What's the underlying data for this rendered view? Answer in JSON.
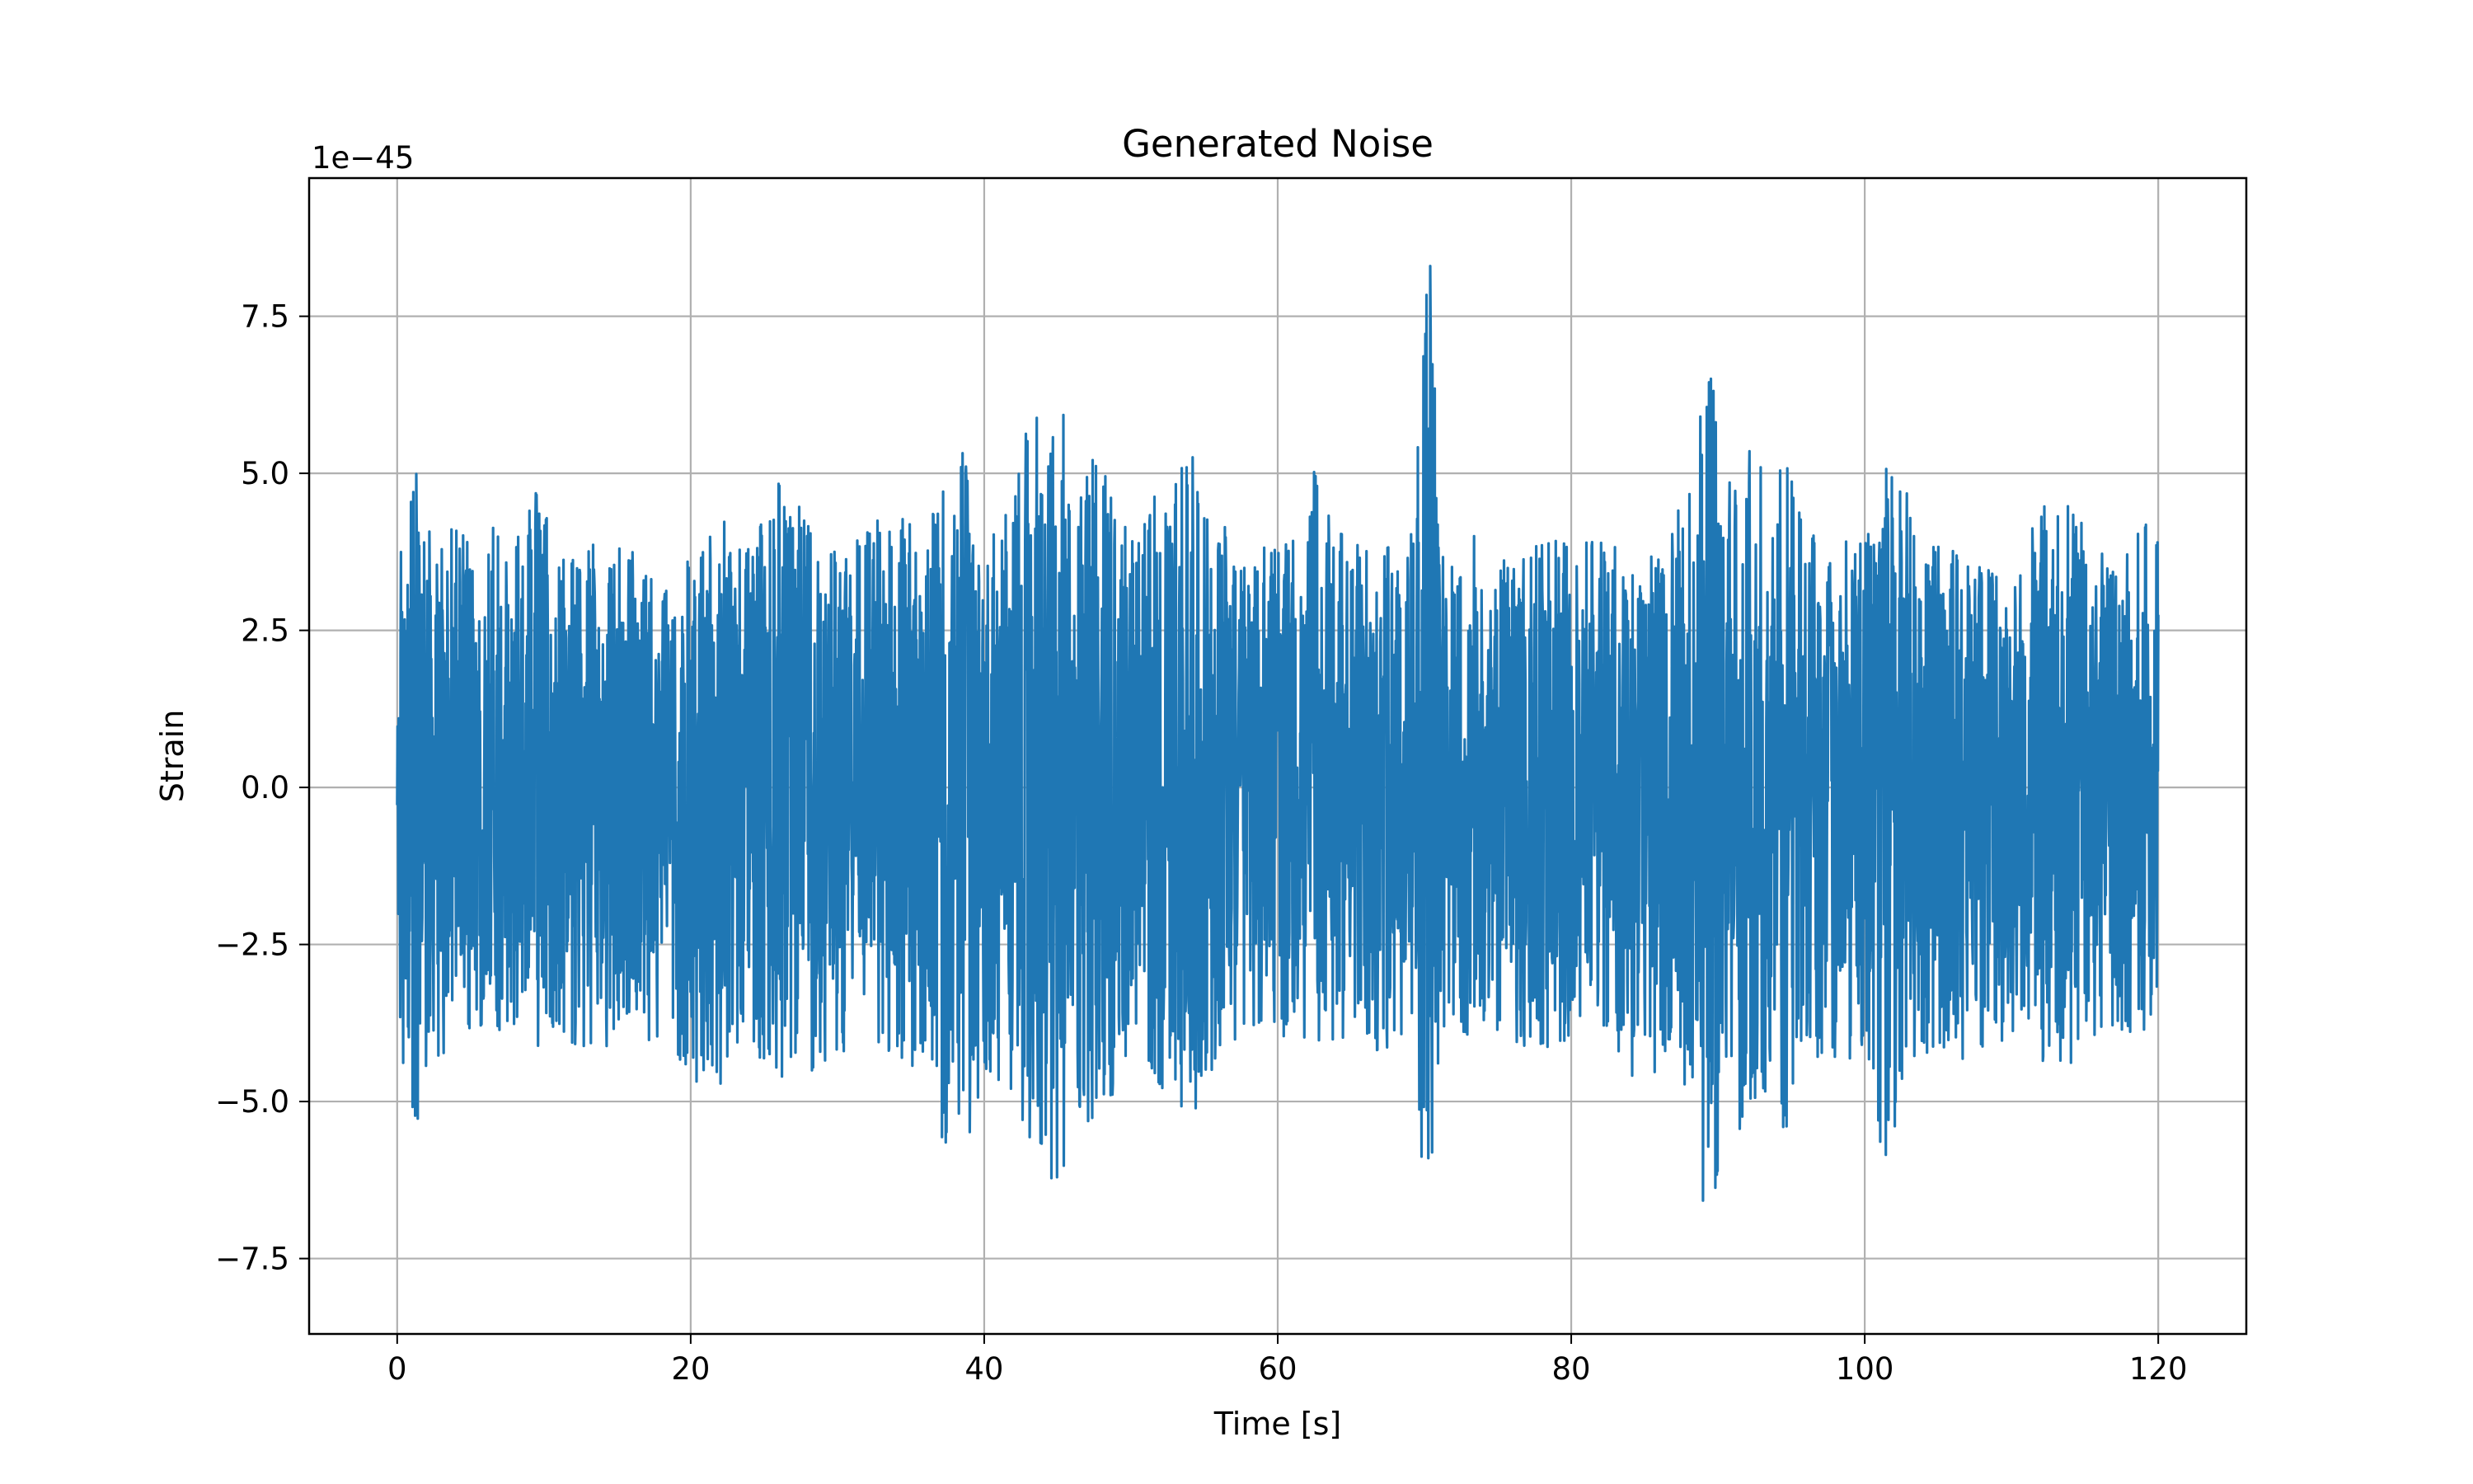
{
  "chart_data": {
    "type": "line",
    "title": "Generated Noise",
    "xlabel": "Time [s]",
    "ylabel": "Strain",
    "y_offset_text": "1e−45",
    "xlim": [
      -6,
      126
    ],
    "ylim": [
      -8.7,
      9.7
    ],
    "x_ticks": [
      0,
      20,
      40,
      60,
      80,
      100,
      120
    ],
    "x_tick_labels": [
      "0",
      "20",
      "40",
      "60",
      "80",
      "100",
      "120"
    ],
    "y_ticks": [
      -7.5,
      -5.0,
      -2.5,
      0.0,
      2.5,
      5.0,
      7.5
    ],
    "y_tick_labels": [
      "−7.5",
      "−5.0",
      "−2.5",
      "0.0",
      "2.5",
      "5.0",
      "7.5"
    ],
    "grid": true,
    "line_color": "#1f77b4",
    "series": [
      {
        "x_range": [
          0,
          120
        ],
        "envelope": {
          "x": [
            0,
            0.3,
            1.2,
            2,
            4,
            6,
            8,
            9.8,
            11,
            14,
            16,
            19,
            22,
            24,
            26,
            28,
            30,
            33,
            36,
            38.2,
            40,
            42,
            42.7,
            44,
            45.3,
            46,
            48,
            49.3,
            50,
            52,
            53,
            54,
            56,
            58,
            60,
            62,
            62.7,
            64,
            66,
            68,
            69.3,
            70.4,
            71,
            72,
            74,
            76,
            78,
            80,
            82,
            84,
            86,
            88.3,
            89.1,
            89.7,
            90.6,
            92,
            94,
            94.2,
            96,
            98,
            99.6,
            101,
            101.5,
            104,
            106,
            108,
            110,
            112,
            113.6,
            115,
            117,
            118.5,
            120
          ],
          "upper": [
            1.0,
            4.9,
            5.2,
            4.2,
            4.1,
            4.4,
            4.3,
            4.9,
            3.7,
            4.0,
            3.8,
            3.5,
            4.3,
            3.9,
            5.0,
            4.3,
            3.8,
            4.4,
            4.3,
            5.8,
            3.8,
            4.7,
            6.6,
            5.6,
            6.4,
            4.9,
            5.4,
            4.1,
            4.5,
            4.7,
            5.6,
            5.5,
            4.3,
            4.0,
            3.9,
            4.0,
            5.5,
            4.1,
            3.8,
            4.2,
            4.5,
            8.9,
            3.9,
            3.8,
            4.2,
            3.5,
            4.0,
            3.9,
            4.1,
            3.6,
            3.8,
            5.3,
            6.5,
            7.1,
            4.8,
            5.6,
            4.8,
            5.6,
            4.1,
            4.3,
            4.2,
            4.0,
            5.3,
            4.2,
            3.8,
            3.5,
            3.7,
            4.4,
            5.0,
            4.2,
            3.6,
            4.0,
            4.6
          ],
          "lower": [
            -1.0,
            -5.2,
            -5.9,
            -4.5,
            -4.2,
            -3.9,
            -4.1,
            -4.5,
            -4.0,
            -4.3,
            -4.0,
            -4.5,
            -4.9,
            -4.1,
            -5.0,
            -4.6,
            -4.2,
            -4.3,
            -4.5,
            -6.6,
            -4.5,
            -4.9,
            -5.8,
            -6.1,
            -6.4,
            -5.1,
            -5.7,
            -4.4,
            -4.6,
            -4.8,
            -5.0,
            -5.5,
            -4.3,
            -4.1,
            -3.9,
            -4.2,
            -5.1,
            -4.1,
            -4.3,
            -4.2,
            -4.3,
            -7.9,
            -4.2,
            -4.0,
            -3.9,
            -4.1,
            -4.2,
            -4.0,
            -4.0,
            -4.6,
            -4.6,
            -5.3,
            -6.9,
            -7.5,
            -5.4,
            -5.5,
            -4.6,
            -5.9,
            -4.2,
            -4.5,
            -4.4,
            -6.2,
            -5.8,
            -4.3,
            -4.5,
            -4.2,
            -4.1,
            -4.4,
            -4.8,
            -4.3,
            -3.8,
            -4.0,
            -4.1
          ]
        }
      }
    ]
  }
}
